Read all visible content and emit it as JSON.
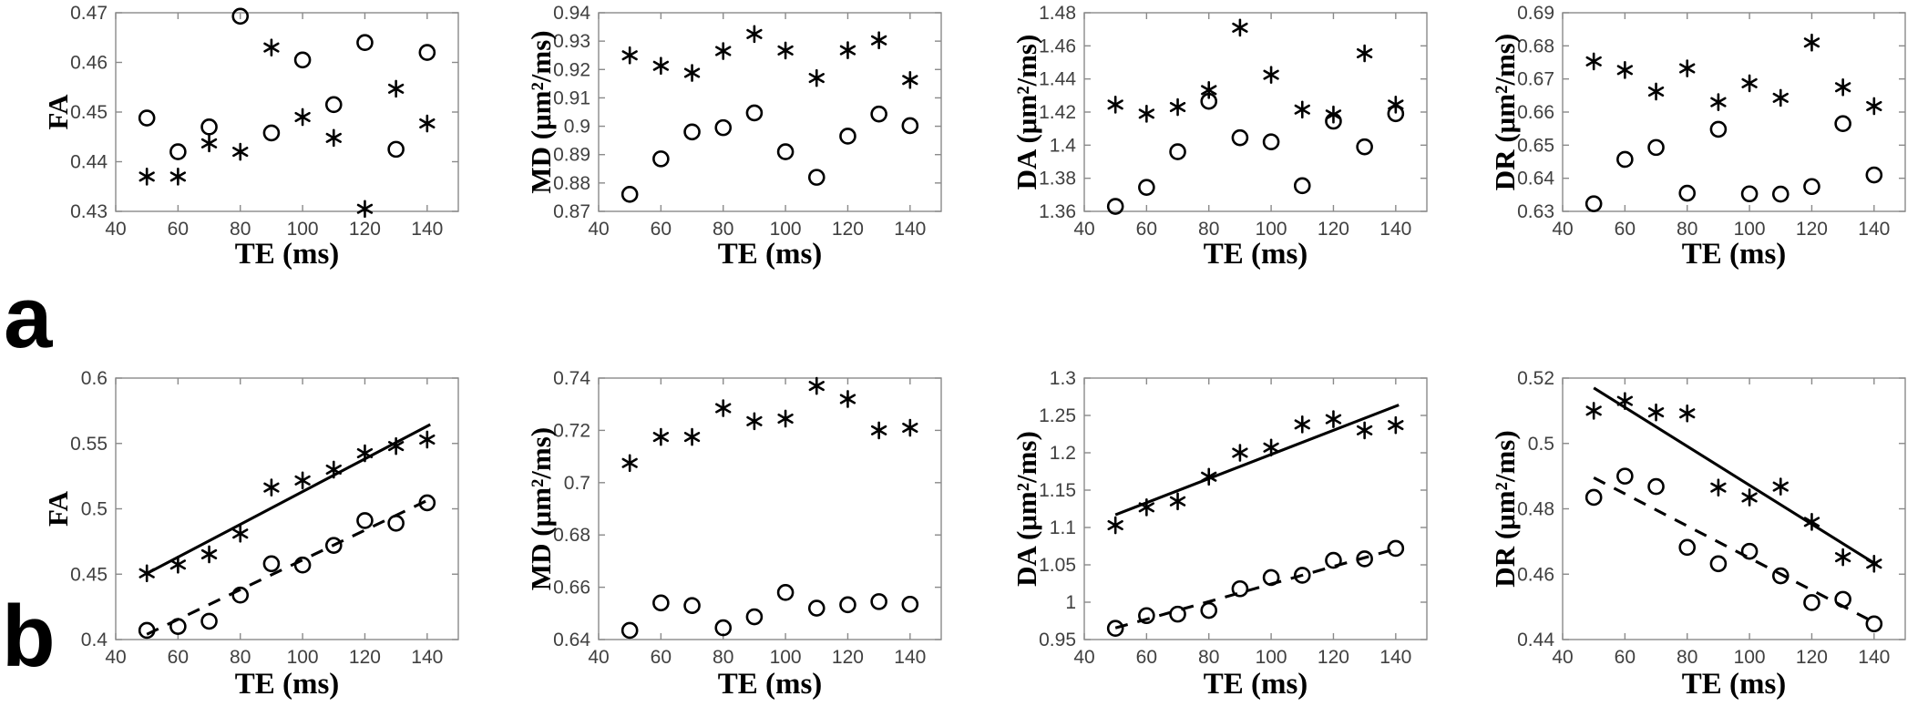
{
  "figure": {
    "row_labels": [
      "a",
      "b"
    ],
    "background_color": "#ffffff",
    "marker_color": "#000000",
    "axis_color": "#8a8a8a",
    "tick_label_color": "#404040",
    "marker_legend": [
      {
        "marker": "asterisk",
        "name": "asterisk-series"
      },
      {
        "marker": "circle",
        "name": "circle-series"
      }
    ]
  },
  "chart_data": [
    {
      "id": "a-FA",
      "row": "a",
      "col": 0,
      "type": "scatter",
      "xlabel": "TE (ms)",
      "ylabel": "FA",
      "xlim": [
        40,
        150
      ],
      "ylim": [
        0.43,
        0.47
      ],
      "xticks": [
        40,
        60,
        80,
        100,
        120,
        140
      ],
      "xtick_labels": [
        "40",
        "60",
        "80",
        "100",
        "120",
        "140"
      ],
      "yticks": [
        0.43,
        0.44,
        0.45,
        0.46,
        0.47
      ],
      "ytick_labels": [
        "0.43",
        "0.44",
        "0.45",
        "0.46",
        "0.47"
      ],
      "x": [
        50,
        60,
        70,
        80,
        90,
        100,
        110,
        120,
        130,
        140
      ],
      "series": [
        {
          "name": "asterisk-series",
          "marker": "asterisk",
          "values": [
            0.437,
            0.437,
            0.4437,
            0.442,
            0.463,
            0.449,
            0.4448,
            0.4305,
            0.4547,
            0.4477
          ]
        },
        {
          "name": "circle-series",
          "marker": "circle",
          "values": [
            0.4488,
            0.442,
            0.447,
            0.4693,
            0.4458,
            0.4605,
            0.4515,
            0.464,
            0.4425,
            0.462
          ]
        }
      ],
      "fit_lines": []
    },
    {
      "id": "a-MD",
      "row": "a",
      "col": 1,
      "type": "scatter",
      "xlabel": "TE (ms)",
      "ylabel": "MD (μm²/ms)",
      "xlim": [
        40,
        150
      ],
      "ylim": [
        0.87,
        0.94
      ],
      "xticks": [
        40,
        60,
        80,
        100,
        120,
        140
      ],
      "xtick_labels": [
        "40",
        "60",
        "80",
        "100",
        "120",
        "140"
      ],
      "yticks": [
        0.87,
        0.88,
        0.89,
        0.9,
        0.91,
        0.92,
        0.93,
        0.94
      ],
      "ytick_labels": [
        "0.87",
        "0.88",
        "0.89",
        "0.9",
        "0.91",
        "0.92",
        "0.93",
        "0.94"
      ],
      "x": [
        50,
        60,
        70,
        80,
        90,
        100,
        110,
        120,
        130,
        140
      ],
      "series": [
        {
          "name": "asterisk-series",
          "marker": "asterisk",
          "values": [
            0.925,
            0.9213,
            0.9188,
            0.9265,
            0.9325,
            0.9267,
            0.917,
            0.9268,
            0.9303,
            0.9163
          ]
        },
        {
          "name": "circle-series",
          "marker": "circle",
          "values": [
            0.876,
            0.8885,
            0.898,
            0.8995,
            0.9047,
            0.891,
            0.882,
            0.8965,
            0.9043,
            0.9002
          ]
        }
      ],
      "fit_lines": []
    },
    {
      "id": "a-DA",
      "row": "a",
      "col": 2,
      "type": "scatter",
      "xlabel": "TE (ms)",
      "ylabel": "DA (μm²/ms)",
      "xlim": [
        40,
        150
      ],
      "ylim": [
        1.36,
        1.48
      ],
      "xticks": [
        40,
        60,
        80,
        100,
        120,
        140
      ],
      "xtick_labels": [
        "40",
        "60",
        "80",
        "100",
        "120",
        "140"
      ],
      "yticks": [
        1.36,
        1.38,
        1.4,
        1.42,
        1.44,
        1.46,
        1.48
      ],
      "ytick_labels": [
        "1.36",
        "1.38",
        "1.4",
        "1.42",
        "1.44",
        "1.46",
        "1.48"
      ],
      "x": [
        50,
        60,
        70,
        80,
        90,
        100,
        110,
        120,
        130,
        140
      ],
      "series": [
        {
          "name": "asterisk-series",
          "marker": "asterisk",
          "values": [
            1.4245,
            1.419,
            1.423,
            1.4333,
            1.471,
            1.4425,
            1.4215,
            1.4185,
            1.4555,
            1.4245
          ]
        },
        {
          "name": "circle-series",
          "marker": "circle",
          "values": [
            1.363,
            1.3745,
            1.396,
            1.4265,
            1.4045,
            1.402,
            1.3755,
            1.4145,
            1.399,
            1.419
          ]
        }
      ],
      "fit_lines": []
    },
    {
      "id": "a-DR",
      "row": "a",
      "col": 3,
      "type": "scatter",
      "xlabel": "TE (ms)",
      "ylabel": "DR (μm²/ms)",
      "xlim": [
        40,
        150
      ],
      "ylim": [
        0.63,
        0.69
      ],
      "xticks": [
        40,
        60,
        80,
        100,
        120,
        140
      ],
      "xtick_labels": [
        "40",
        "60",
        "80",
        "100",
        "120",
        "140"
      ],
      "yticks": [
        0.63,
        0.64,
        0.65,
        0.66,
        0.67,
        0.68,
        0.69
      ],
      "ytick_labels": [
        "0.63",
        "0.64",
        "0.65",
        "0.66",
        "0.67",
        "0.68",
        "0.69"
      ],
      "x": [
        50,
        60,
        70,
        80,
        90,
        100,
        110,
        120,
        130,
        140
      ],
      "series": [
        {
          "name": "asterisk-series",
          "marker": "asterisk",
          "values": [
            0.6753,
            0.6727,
            0.6662,
            0.6732,
            0.663,
            0.6687,
            0.6643,
            0.681,
            0.6675,
            0.6618
          ]
        },
        {
          "name": "circle-series",
          "marker": "circle",
          "values": [
            0.6323,
            0.6457,
            0.6493,
            0.6355,
            0.6548,
            0.6353,
            0.6352,
            0.6375,
            0.6565,
            0.641
          ]
        }
      ],
      "fit_lines": []
    },
    {
      "id": "b-FA",
      "row": "b",
      "col": 0,
      "type": "scatter",
      "xlabel": "TE (ms)",
      "ylabel": "FA",
      "xlim": [
        40,
        150
      ],
      "ylim": [
        0.4,
        0.6
      ],
      "xticks": [
        40,
        60,
        80,
        100,
        120,
        140
      ],
      "xtick_labels": [
        "40",
        "60",
        "80",
        "100",
        "120",
        "140"
      ],
      "yticks": [
        0.4,
        0.45,
        0.5,
        0.55,
        0.6
      ],
      "ytick_labels": [
        "0.4",
        "0.45",
        "0.5",
        "0.55",
        "0.6"
      ],
      "x": [
        50,
        60,
        70,
        80,
        90,
        100,
        110,
        120,
        130,
        140
      ],
      "series": [
        {
          "name": "asterisk-series",
          "marker": "asterisk",
          "values": [
            0.4507,
            0.4573,
            0.4652,
            0.481,
            0.5163,
            0.5217,
            0.53,
            0.5425,
            0.548,
            0.553
          ]
        },
        {
          "name": "circle-series",
          "marker": "circle",
          "values": [
            0.407,
            0.41,
            0.414,
            0.434,
            0.458,
            0.457,
            0.472,
            0.491,
            0.489,
            0.5046
          ]
        }
      ],
      "fit_lines": [
        {
          "name": "asterisk-fit",
          "style": "solid",
          "x": [
            50,
            141
          ],
          "y": [
            0.4505,
            0.5645
          ]
        },
        {
          "name": "circle-fit",
          "style": "dashed",
          "x": [
            50,
            141
          ],
          "y": [
            0.404,
            0.5075
          ]
        }
      ]
    },
    {
      "id": "b-MD",
      "row": "b",
      "col": 1,
      "type": "scatter",
      "xlabel": "TE (ms)",
      "ylabel": "MD (μm²/ms)",
      "xlim": [
        40,
        150
      ],
      "ylim": [
        0.64,
        0.74
      ],
      "xticks": [
        40,
        60,
        80,
        100,
        120,
        140
      ],
      "xtick_labels": [
        "40",
        "60",
        "80",
        "100",
        "120",
        "140"
      ],
      "yticks": [
        0.64,
        0.66,
        0.68,
        0.7,
        0.72,
        0.74
      ],
      "ytick_labels": [
        "0.64",
        "0.66",
        "0.68",
        "0.7",
        "0.72",
        "0.74"
      ],
      "x": [
        50,
        60,
        70,
        80,
        90,
        100,
        110,
        120,
        130,
        140
      ],
      "series": [
        {
          "name": "asterisk-series",
          "marker": "asterisk",
          "values": [
            0.7075,
            0.7175,
            0.7175,
            0.7285,
            0.7235,
            0.7245,
            0.737,
            0.732,
            0.72,
            0.721
          ]
        },
        {
          "name": "circle-series",
          "marker": "circle",
          "values": [
            0.6435,
            0.654,
            0.653,
            0.6445,
            0.6487,
            0.658,
            0.652,
            0.6533,
            0.6545,
            0.6535
          ]
        }
      ],
      "fit_lines": []
    },
    {
      "id": "b-DA",
      "row": "b",
      "col": 2,
      "type": "scatter",
      "xlabel": "TE (ms)",
      "ylabel": "DA (μm²/ms)",
      "xlim": [
        40,
        150
      ],
      "ylim": [
        0.95,
        1.3
      ],
      "xticks": [
        40,
        60,
        80,
        100,
        120,
        140
      ],
      "xtick_labels": [
        "40",
        "60",
        "80",
        "100",
        "120",
        "140"
      ],
      "yticks": [
        0.95,
        1,
        1.05,
        1.1,
        1.15,
        1.2,
        1.25,
        1.3
      ],
      "ytick_labels": [
        "0.95",
        "1",
        "1.05",
        "1.1",
        "1.15",
        "1.2",
        "1.25",
        "1.3"
      ],
      "x": [
        50,
        60,
        70,
        80,
        90,
        100,
        110,
        120,
        130,
        140
      ],
      "series": [
        {
          "name": "asterisk-series",
          "marker": "asterisk",
          "values": [
            1.103,
            1.127,
            1.135,
            1.168,
            1.2,
            1.207,
            1.238,
            1.245,
            1.23,
            1.237
          ]
        },
        {
          "name": "circle-series",
          "marker": "circle",
          "values": [
            0.965,
            0.982,
            0.984,
            0.989,
            1.018,
            1.033,
            1.036,
            1.056,
            1.058,
            1.072
          ]
        }
      ],
      "fit_lines": [
        {
          "name": "asterisk-fit",
          "style": "solid",
          "x": [
            50,
            141
          ],
          "y": [
            1.117,
            1.264
          ]
        },
        {
          "name": "circle-fit",
          "style": "dashed",
          "x": [
            50,
            141
          ],
          "y": [
            0.9655,
            1.0725
          ]
        }
      ]
    },
    {
      "id": "b-DR",
      "row": "b",
      "col": 3,
      "type": "scatter",
      "xlabel": "TE (ms)",
      "ylabel": "DR (μm²/ms)",
      "xlim": [
        40,
        150
      ],
      "ylim": [
        0.44,
        0.52
      ],
      "xticks": [
        40,
        60,
        80,
        100,
        120,
        140
      ],
      "xtick_labels": [
        "40",
        "60",
        "80",
        "100",
        "120",
        "140"
      ],
      "yticks": [
        0.44,
        0.46,
        0.48,
        0.5,
        0.52
      ],
      "ytick_labels": [
        "0.44",
        "0.46",
        "0.48",
        "0.5",
        "0.52"
      ],
      "x": [
        50,
        60,
        70,
        80,
        90,
        100,
        110,
        120,
        130,
        140
      ],
      "series": [
        {
          "name": "asterisk-series",
          "marker": "asterisk",
          "values": [
            0.51,
            0.513,
            0.5095,
            0.5092,
            0.4865,
            0.4835,
            0.4868,
            0.476,
            0.4652,
            0.4632
          ]
        },
        {
          "name": "circle-series",
          "marker": "circle",
          "values": [
            0.4835,
            0.49,
            0.4868,
            0.4682,
            0.4632,
            0.467,
            0.4595,
            0.4513,
            0.4523,
            0.4448
          ]
        }
      ],
      "fit_lines": [
        {
          "name": "asterisk-fit",
          "style": "solid",
          "x": [
            50,
            141
          ],
          "y": [
            0.517,
            0.4628
          ]
        },
        {
          "name": "circle-fit",
          "style": "dashed",
          "x": [
            50,
            141
          ],
          "y": [
            0.4895,
            0.4448
          ]
        }
      ]
    }
  ]
}
